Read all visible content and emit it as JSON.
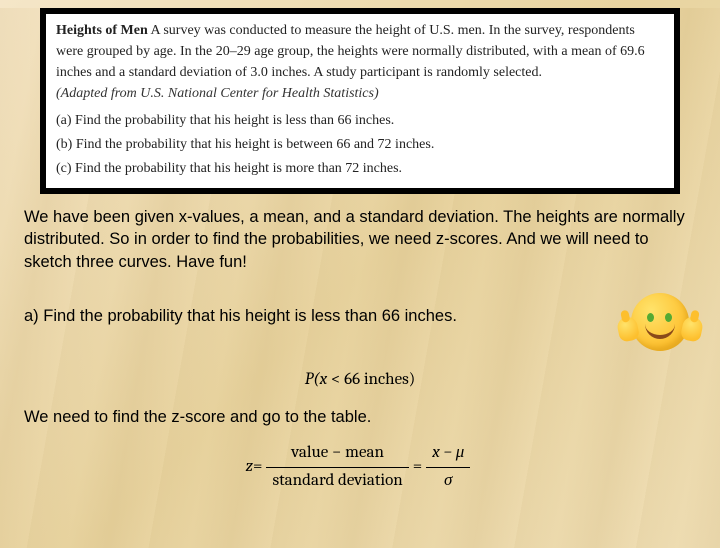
{
  "problem": {
    "title": "Heights of Men",
    "body": "A survey was conducted to measure the height of U.S. men. In the survey, respondents were grouped by age. In the 20–29 age group, the heights were normally distributed, with a mean of 69.6 inches and a standard deviation of 3.0 inches. A study participant is randomly selected.",
    "adapted": "(Adapted from U.S. National Center for Health Statistics)",
    "parts": {
      "a": "(a)  Find the probability that his height is less than 66 inches.",
      "b": "(b)  Find the probability that his height is between 66 and 72 inches.",
      "c": "(c)  Find the probability that his height is more than 72 inches."
    }
  },
  "explain": {
    "p1": "We have been given x-values, a mean, and a standard deviation. The heights are normally distributed. So in order to find the probabilities, we need z-scores. And we will need to sketch three curves. Have fun!",
    "p2": "a) Find the probability that his height is less than 66 inches.",
    "p3": "We need to find the z-score and go to the table."
  },
  "formula": {
    "prob_left": "P(x",
    "prob_right": " < 66 inches)",
    "z_lhs": "z",
    "eq": " = ",
    "num1": "value − mean",
    "den1": "standard deviation",
    "num2": "x − μ",
    "den2": "σ"
  },
  "style": {
    "box_border_color": "#000000",
    "box_bg": "#ffffff",
    "page_bg_stops": [
      "#f5e6c8",
      "#e8d4a0",
      "#f0e0b8",
      "#ddc890"
    ],
    "body_font_size": 16.5,
    "serif_font_size": 14,
    "emoji_colors": {
      "face": "#fdbf2d",
      "highlight": "#ffe36b",
      "mouth": "#8a4a1a"
    }
  }
}
